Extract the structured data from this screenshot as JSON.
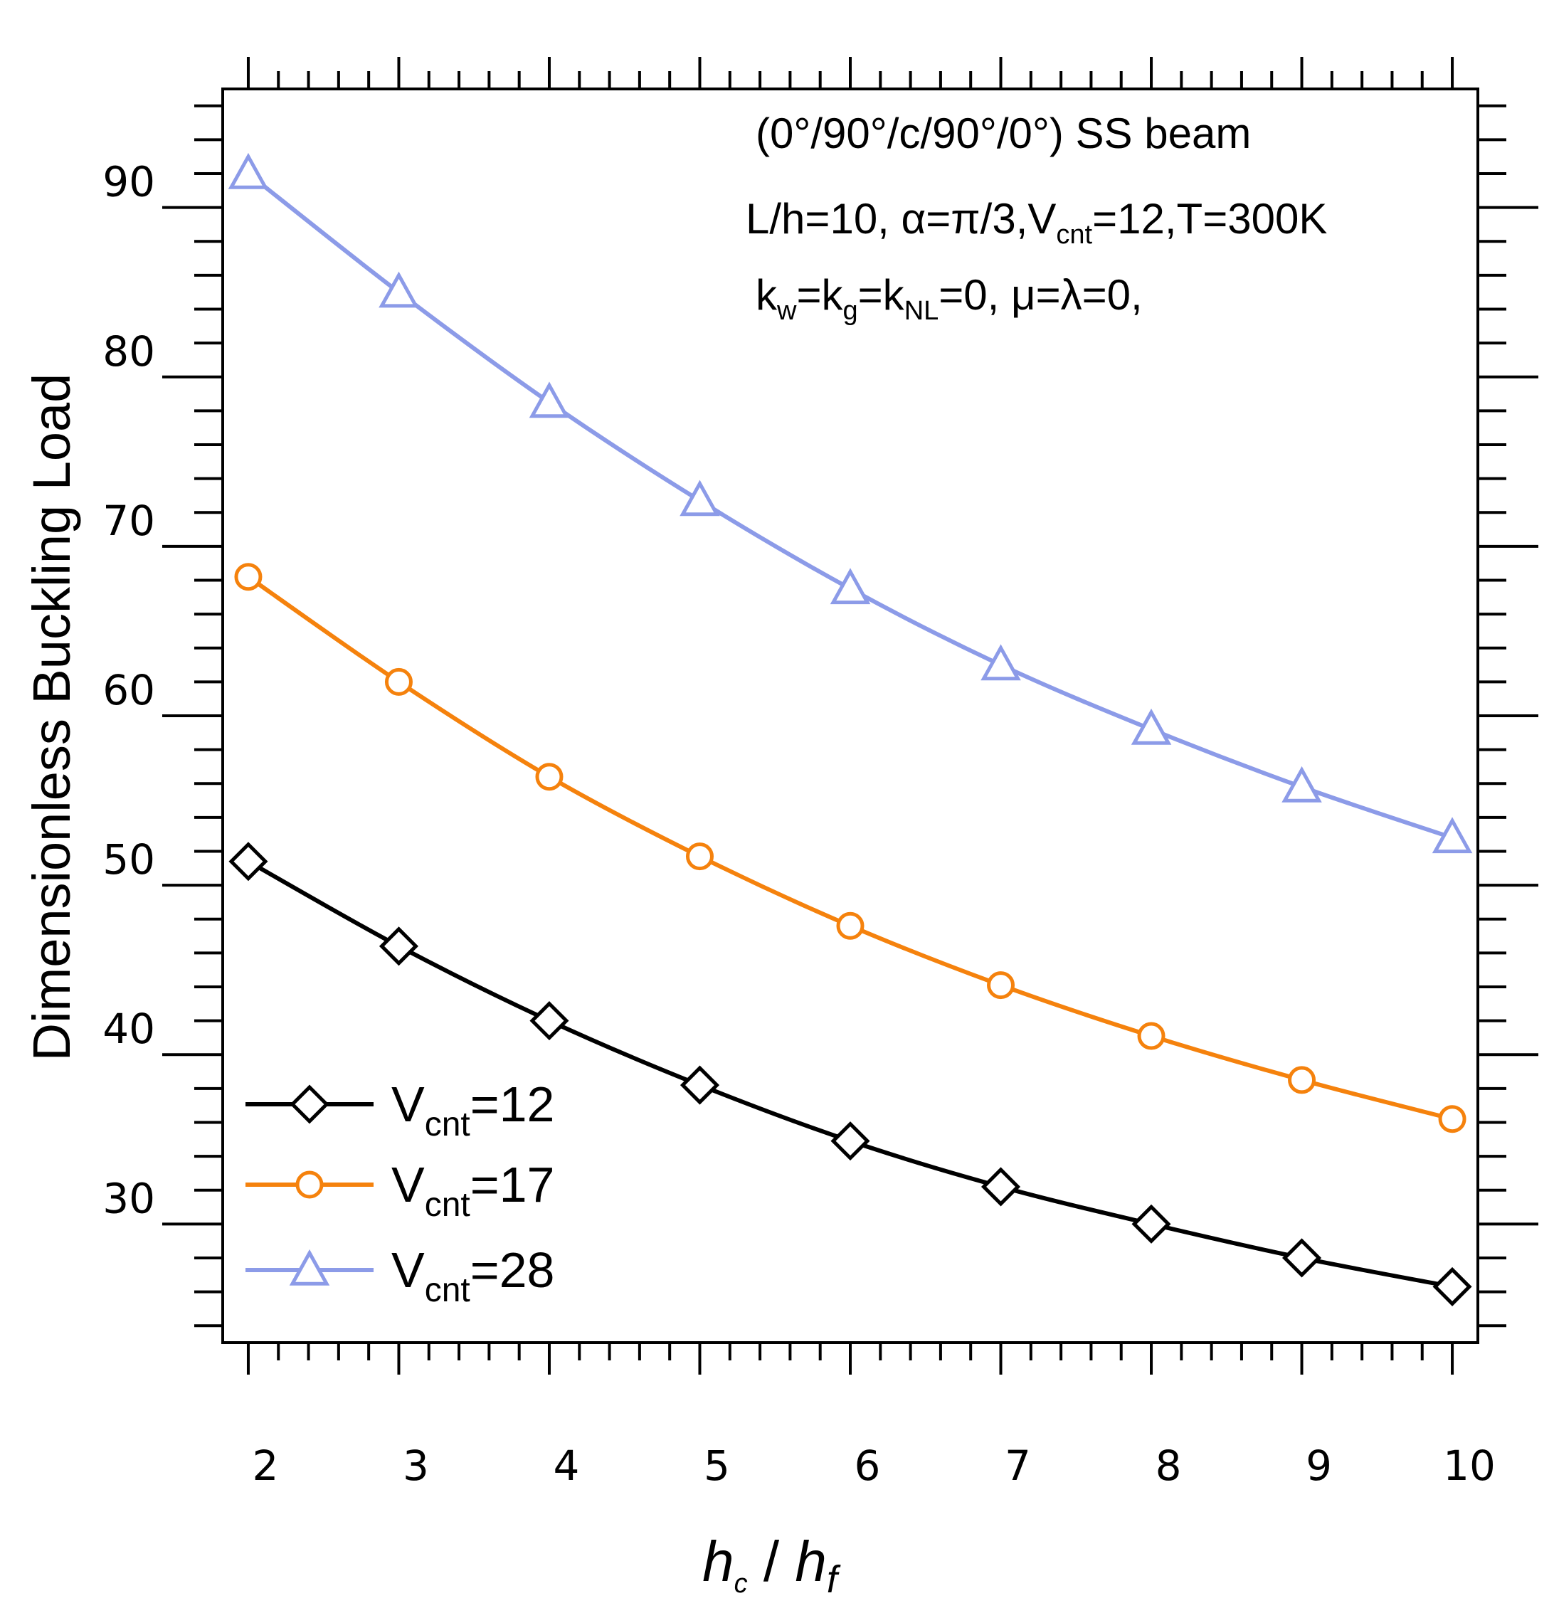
{
  "chart_data": {
    "type": "line",
    "title": "",
    "xlabel": {
      "main": "h",
      "sub1": "c",
      "sep": " / ",
      "main2": "h",
      "sub2": "f"
    },
    "ylabel": "Dimensionless Buckling Load",
    "xlim": [
      1.83,
      10.17
    ],
    "ylim": [
      23,
      97
    ],
    "x_ticks": [
      2,
      3,
      4,
      5,
      6,
      7,
      8,
      9,
      10
    ],
    "y_ticks": [
      30,
      40,
      50,
      60,
      70,
      80,
      90
    ],
    "x": [
      2,
      3,
      4,
      5,
      6,
      7,
      8,
      9,
      10
    ],
    "grid": false,
    "legend_position": "bottom-left",
    "annotations": {
      "line1": "(0°/90°/c/90°/0°) SS beam",
      "line2": {
        "a": "L/h=10, ",
        "b": "α=π/3,V",
        "sub": "cnt",
        "c": "=12,T=300K"
      },
      "line3": {
        "a": "k",
        "sub1": "w",
        "b": "=k",
        "sub2": "g",
        "c": "=k",
        "sub3": "NL",
        "d": "=0, μ=λ=0,"
      }
    },
    "series": [
      {
        "name": "V",
        "name_sub": "cnt",
        "name_suffix": "=12",
        "marker": "diamond",
        "color": "#000000",
        "values": [
          51.4,
          46.4,
          42.0,
          38.2,
          34.9,
          32.2,
          30.0,
          28.0,
          26.3
        ]
      },
      {
        "name": "V",
        "name_sub": "cnt",
        "name_suffix": "=17",
        "marker": "circle",
        "color": "#f5820d",
        "values": [
          68.2,
          62.0,
          56.4,
          51.7,
          47.6,
          44.1,
          41.1,
          38.5,
          36.2
        ]
      },
      {
        "name": "V",
        "name_sub": "cnt",
        "name_suffix": "=28",
        "marker": "triangle",
        "color": "#8c9be8",
        "values": [
          92.0,
          85.0,
          78.5,
          72.7,
          67.5,
          63.0,
          59.2,
          55.8,
          52.8
        ]
      }
    ]
  }
}
